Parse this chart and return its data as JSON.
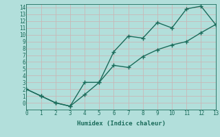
{
  "xlabel": "Humidex (Indice chaleur)",
  "ylabel": "",
  "bg_color": "#b2dfdb",
  "grid_color": "#c8b8b8",
  "line_color": "#1a6b5a",
  "line1_x": [
    0,
    1,
    2,
    3,
    4,
    5,
    6,
    7,
    8,
    9,
    10,
    11,
    12,
    13
  ],
  "line1_y": [
    2,
    1,
    0,
    -0.5,
    3.0,
    3.0,
    7.5,
    9.8,
    9.5,
    11.8,
    11.0,
    13.8,
    14.2,
    11.5
  ],
  "line2_x": [
    0,
    1,
    2,
    3,
    4,
    5,
    6,
    7,
    8,
    9,
    10,
    11,
    12,
    13
  ],
  "line2_y": [
    2,
    1,
    0,
    -0.5,
    1.2,
    3.0,
    5.5,
    5.2,
    6.8,
    7.8,
    8.5,
    9.0,
    10.3,
    11.5
  ],
  "xlim": [
    0,
    13
  ],
  "ylim": [
    -1.0,
    14.5
  ],
  "yticks": [
    0,
    1,
    2,
    3,
    4,
    5,
    6,
    7,
    8,
    9,
    10,
    11,
    12,
    13,
    14
  ],
  "xticks": [
    0,
    1,
    2,
    3,
    4,
    5,
    6,
    7,
    8,
    9,
    10,
    11,
    12,
    13
  ],
  "tick_fontsize": 5.5,
  "xlabel_fontsize": 6.5
}
